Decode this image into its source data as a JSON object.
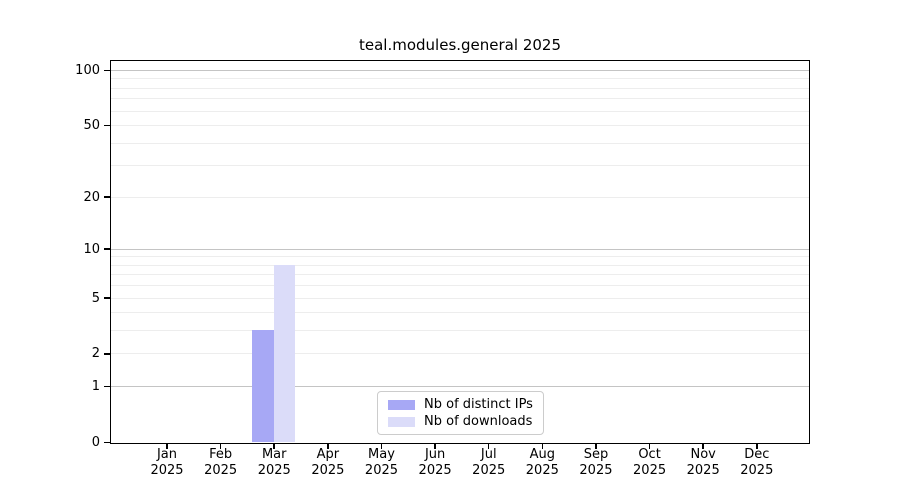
{
  "chart_data": {
    "type": "bar",
    "title": "teal.modules.general 2025",
    "categories": [
      "Jan 2025",
      "Feb 2025",
      "Mar 2025",
      "Apr 2025",
      "May 2025",
      "Jun 2025",
      "Jul 2025",
      "Aug 2025",
      "Sep 2025",
      "Oct 2025",
      "Nov 2025",
      "Dec 2025"
    ],
    "series": [
      {
        "name": "Nb of distinct IPs",
        "color": "#a7a8f5",
        "values": [
          0,
          0,
          3,
          0,
          0,
          0,
          0,
          0,
          0,
          0,
          0,
          0
        ]
      },
      {
        "name": "Nb of downloads",
        "color": "#dbdcf9",
        "values": [
          0,
          0,
          8,
          0,
          0,
          0,
          0,
          0,
          0,
          0,
          0,
          0
        ]
      }
    ],
    "xlabel": "",
    "ylabel": "",
    "y_scale": "log1p",
    "y_ticks": [
      0,
      1,
      2,
      5,
      10,
      20,
      50,
      100
    ],
    "ylim": [
      0,
      115
    ],
    "grid": {
      "major": [
        1,
        10,
        100
      ],
      "minor": [
        2,
        3,
        4,
        5,
        6,
        7,
        8,
        9,
        20,
        30,
        40,
        50,
        60,
        70,
        80,
        90
      ]
    },
    "legend_position": "lower center, inside plot"
  },
  "colors": {
    "axis": "#000000",
    "major_grid": "#c4c4c4",
    "minor_grid": "#ededed",
    "legend_border": "#cccccc",
    "legend_bg": "#ffffff",
    "background": "#ffffff"
  }
}
